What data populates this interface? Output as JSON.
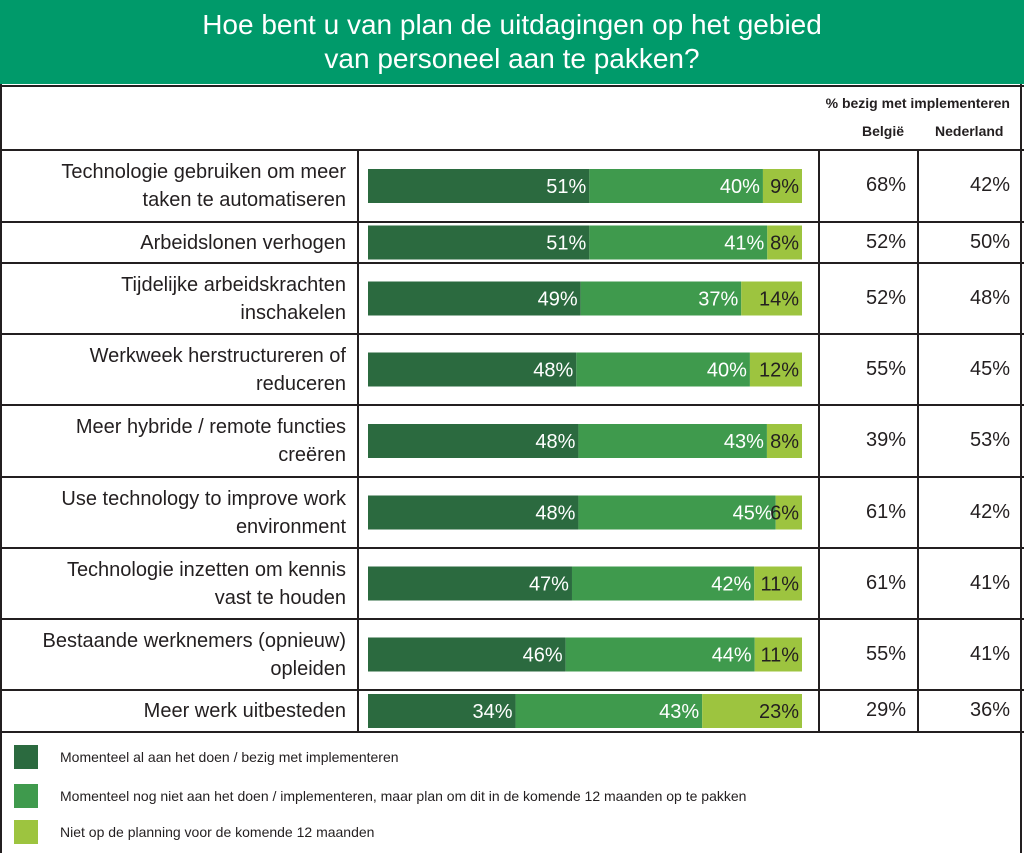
{
  "title_lines": [
    "Hoe bent u van plan de uitdagingen op het gebied",
    "van personeel aan te pakken?"
  ],
  "header_note": "% bezig met implementeren",
  "col_belgie": "België",
  "col_nederland": "Nederland",
  "colors": {
    "header": "#009a6a",
    "dark": "#2b6a3f",
    "mid": "#3f9a4d",
    "light": "#9dc43f"
  },
  "chart_data": {
    "type": "bar",
    "orientation": "horizontal",
    "stacked": true,
    "categories": [
      "Technologie gebruiken om meer\ntaken te automatiseren",
      "Arbeidslonen verhogen",
      "Tijdelijke arbeidskrachten\ninschakelen",
      "Werkweek herstructureren of\nreduceren",
      "Meer hybride / remote functies\ncreëren",
      "Use technology to improve work\nenvironment",
      "Technologie inzetten om kennis\nvast te houden",
      "Bestaande werknemers (opnieuw)\nopleiden",
      "Meer werk uitbesteden"
    ],
    "series": [
      {
        "name": "Momenteel al aan het doen / bezig met implementeren",
        "values": [
          51,
          51,
          49,
          48,
          48,
          48,
          47,
          46,
          34
        ],
        "labels": [
          "51%",
          "51%",
          "49%",
          "48%",
          "48%",
          "48%",
          "47%",
          "46%",
          "34%"
        ]
      },
      {
        "name": "Momenteel nog niet aan het doen / implementeren, maar plan om dit in de komende 12 maanden op te pakken",
        "values": [
          40,
          41,
          37,
          40,
          43,
          45,
          42,
          44,
          43
        ],
        "labels": [
          "40%",
          "41%",
          "37%",
          "40%",
          "43%",
          "45%",
          "42%",
          "44%",
          "43%"
        ]
      },
      {
        "name": "Niet op de planning voor de komende 12 maanden",
        "values": [
          9,
          8,
          14,
          12,
          8,
          6,
          11,
          11,
          23
        ],
        "labels": [
          "9%",
          "8%",
          "14%",
          "12%",
          "8%",
          "6%",
          "11%",
          "11%",
          "23%"
        ]
      }
    ],
    "belgie": [
      "68%",
      "52%",
      "52%",
      "55%",
      "39%",
      "61%",
      "61%",
      "55%",
      "29%"
    ],
    "nederland": [
      "42%",
      "50%",
      "48%",
      "45%",
      "53%",
      "42%",
      "41%",
      "41%",
      "36%"
    ],
    "xlim": [
      0,
      100
    ],
    "legend_position": "bottom"
  }
}
